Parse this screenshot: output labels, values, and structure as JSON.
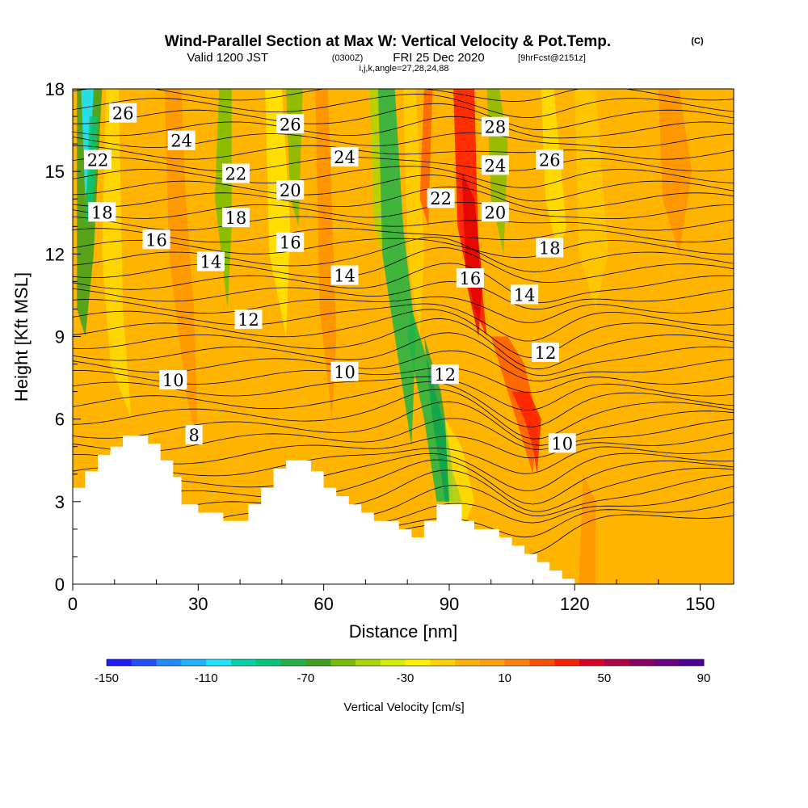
{
  "header": {
    "title": "Wind-Parallel Section at Max W: Vertical Velocity & Pot.Temp.",
    "copyright": "(C)",
    "valid_prefix": "Valid 1200 JST",
    "valid_utc": "(0300Z)",
    "valid_date": "FRI 25 Dec 2020",
    "forecast": "[9hrFcst@2151z]",
    "params": "i,j,k,angle=27,28,24,88"
  },
  "colors": {
    "terrain": "#ffffff",
    "contour": "#000000",
    "scale": [
      "#1e1eff",
      "#1e50ff",
      "#1e8cff",
      "#1eb4ff",
      "#1ee6ff",
      "#00d2aa",
      "#00c878",
      "#1eb446",
      "#3ca01e",
      "#78be00",
      "#aad700",
      "#d2f000",
      "#fff000",
      "#ffd200",
      "#ffb400",
      "#ffa000",
      "#ff8200",
      "#ff5000",
      "#ff1e00",
      "#dc0028",
      "#b40046",
      "#8c0064",
      "#6e0082",
      "#500096"
    ]
  },
  "chart_data": {
    "type": "heatmap",
    "xlabel": "Distance [nm]",
    "ylabel": "Height [Kft MSL]",
    "xlim": [
      0,
      158
    ],
    "ylim": [
      0,
      18
    ],
    "x_ticks": [
      0,
      30,
      60,
      90,
      120,
      150
    ],
    "y_ticks": [
      0,
      3,
      6,
      9,
      12,
      15,
      18
    ],
    "colorbar": {
      "title": "Vertical Velocity [cm/s]",
      "min": -150,
      "max": 90,
      "step": 10,
      "tick_labels": [
        "-150",
        "-110",
        "-70",
        "-30",
        "10",
        "50",
        "90"
      ]
    },
    "contour_labels": [
      {
        "text": "26",
        "x": 12,
        "y": 17.1
      },
      {
        "text": "24",
        "x": 26,
        "y": 16.1
      },
      {
        "text": "22",
        "x": 6,
        "y": 15.4
      },
      {
        "text": "18",
        "x": 7,
        "y": 13.5
      },
      {
        "text": "16",
        "x": 20,
        "y": 12.5
      },
      {
        "text": "14",
        "x": 33,
        "y": 11.7
      },
      {
        "text": "22",
        "x": 39,
        "y": 14.9
      },
      {
        "text": "18",
        "x": 39,
        "y": 13.3
      },
      {
        "text": "26",
        "x": 52,
        "y": 16.7
      },
      {
        "text": "20",
        "x": 52,
        "y": 14.3
      },
      {
        "text": "16",
        "x": 52,
        "y": 12.4
      },
      {
        "text": "24",
        "x": 65,
        "y": 15.5
      },
      {
        "text": "14",
        "x": 65,
        "y": 11.2
      },
      {
        "text": "12",
        "x": 42,
        "y": 9.6
      },
      {
        "text": "10",
        "x": 24,
        "y": 7.4
      },
      {
        "text": "10",
        "x": 65,
        "y": 7.7
      },
      {
        "text": "8",
        "x": 29,
        "y": 5.4
      },
      {
        "text": "22",
        "x": 88,
        "y": 14.0
      },
      {
        "text": "28",
        "x": 101,
        "y": 16.6
      },
      {
        "text": "24",
        "x": 101,
        "y": 15.2
      },
      {
        "text": "20",
        "x": 101,
        "y": 13.5
      },
      {
        "text": "26",
        "x": 114,
        "y": 15.4
      },
      {
        "text": "16",
        "x": 95,
        "y": 11.1
      },
      {
        "text": "18",
        "x": 114,
        "y": 12.2
      },
      {
        "text": "14",
        "x": 108,
        "y": 10.5
      },
      {
        "text": "12",
        "x": 89,
        "y": 7.6
      },
      {
        "text": "12",
        "x": 113,
        "y": 8.4
      },
      {
        "text": "10",
        "x": 117,
        "y": 5.1
      }
    ]
  }
}
